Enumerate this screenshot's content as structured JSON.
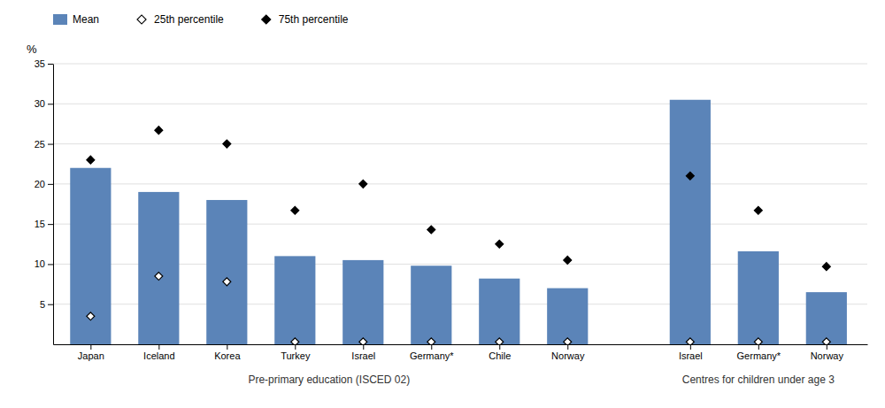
{
  "chart_data": {
    "type": "bar",
    "y_label": "%",
    "groups": [
      {
        "label": "Pre-primary education (ISCED 02)",
        "categories": [
          "Japan",
          "Iceland",
          "Korea",
          "Turkey",
          "Israel",
          "Germany*",
          "Chile",
          "Norway"
        ]
      },
      {
        "label": "Centres for children under age 3",
        "categories": [
          "Israel",
          "Germany*",
          "Norway"
        ]
      }
    ],
    "series": [
      {
        "name": "Mean",
        "type": "bar",
        "color": "#5B84B8",
        "values": [
          22.0,
          19.0,
          18.0,
          11.0,
          10.5,
          9.8,
          8.2,
          7.0,
          30.5,
          11.6,
          6.5
        ]
      },
      {
        "name": "25th percentile",
        "type": "scatter",
        "marker": "diamond-open",
        "color": "black",
        "values": [
          3.5,
          8.5,
          7.8,
          0.3,
          0.3,
          0.3,
          0.3,
          0.3,
          0.3,
          0.3,
          0.3
        ]
      },
      {
        "name": "75th percentile",
        "type": "scatter",
        "marker": "diamond",
        "color": "black",
        "values": [
          23.0,
          26.7,
          25.0,
          16.7,
          20.0,
          14.3,
          12.5,
          10.5,
          21.0,
          16.7,
          9.7
        ]
      }
    ],
    "ylim": [
      0,
      35
    ],
    "yticks": [
      5,
      10,
      15,
      20,
      25,
      30,
      35
    ],
    "grid": true,
    "legend": "top left"
  }
}
